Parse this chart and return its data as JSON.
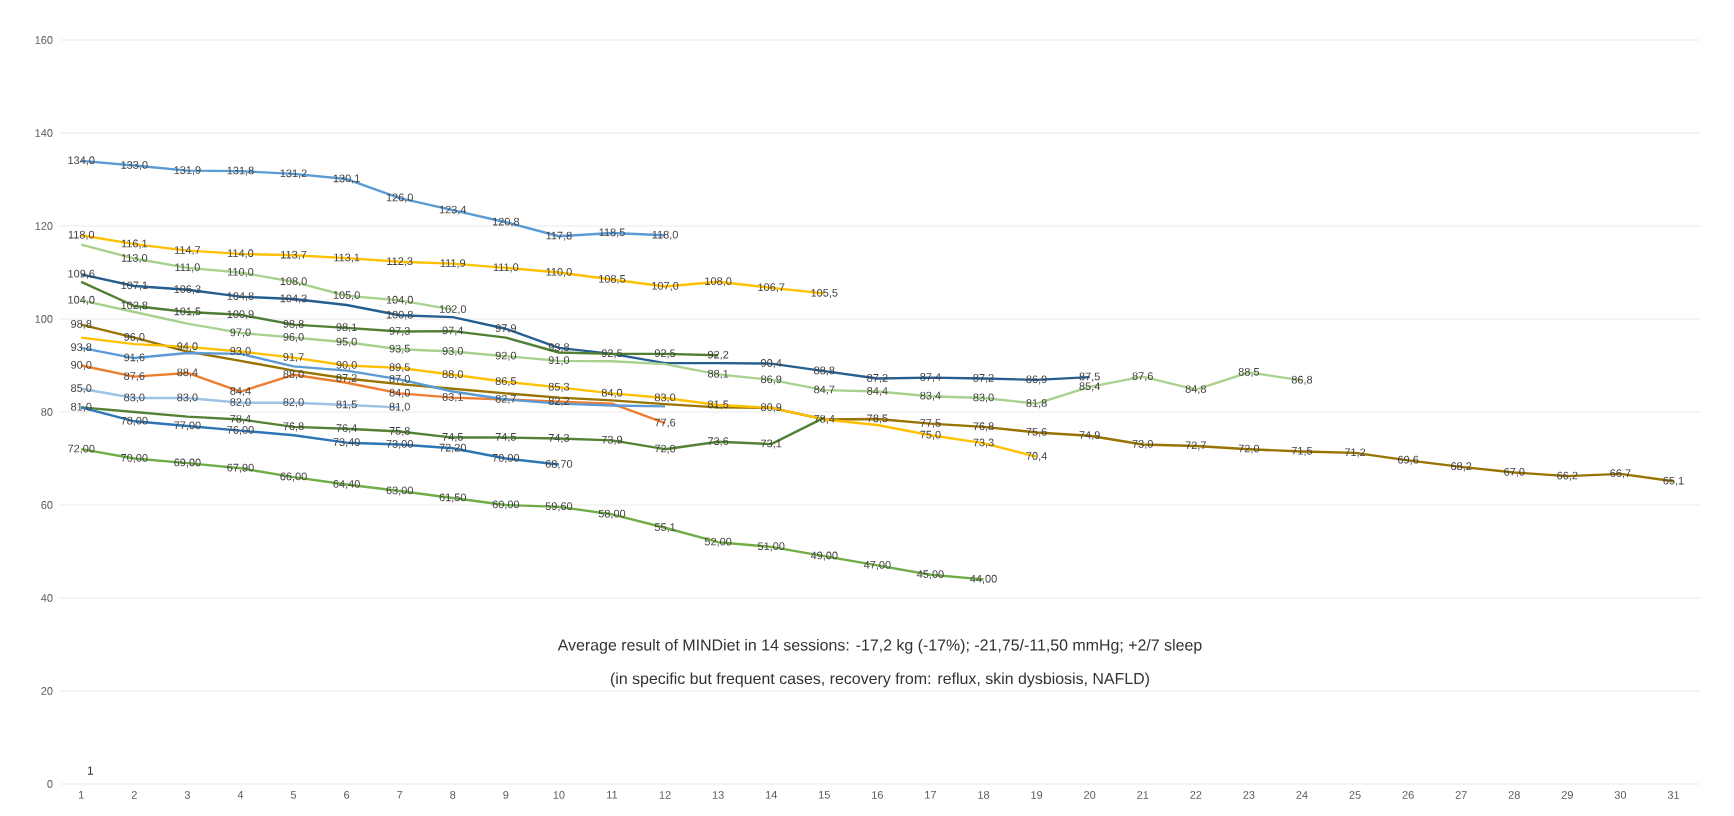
{
  "chart_data": {
    "type": "line",
    "xlim": [
      0.6,
      31.5
    ],
    "ylim": [
      0,
      160
    ],
    "xticks": [
      1,
      2,
      3,
      4,
      5,
      6,
      7,
      8,
      9,
      10,
      11,
      12,
      13,
      14,
      15,
      16,
      17,
      18,
      19,
      20,
      21,
      22,
      23,
      24,
      25,
      26,
      27,
      28,
      29,
      30,
      31
    ],
    "yticks": [
      0,
      20,
      40,
      60,
      80,
      100,
      120,
      140,
      160
    ],
    "grid": "y",
    "marker": "none",
    "line_style": "solid",
    "series": [
      {
        "color": "#5b9bd5",
        "x": [
          1,
          2,
          3,
          4,
          5,
          6,
          7,
          8,
          9,
          10,
          11,
          12
        ],
        "values": [
          134.0,
          133.0,
          131.9,
          131.8,
          131.2,
          130.1,
          126.0,
          123.4,
          120.8,
          117.8,
          118.5,
          118.0
        ],
        "value_labels": [
          "134,0",
          "133,0",
          "131,9",
          "131,8",
          "131,2",
          "130,1",
          "126,0",
          "123,4",
          "120,8",
          "117,8",
          "118,5",
          "118,0"
        ]
      },
      {
        "color": "#ffc000",
        "x": [
          1,
          2,
          3,
          4,
          5,
          6,
          7,
          8,
          9,
          10,
          11,
          12,
          13,
          14,
          15
        ],
        "values": [
          118.0,
          116.1,
          114.7,
          114.0,
          113.7,
          113.1,
          112.3,
          111.9,
          111.0,
          110.0,
          108.5,
          107.0,
          108.0,
          106.7,
          105.5
        ],
        "value_labels": [
          "118,0",
          "116,1",
          "114,7",
          "114,0",
          "113,7",
          "113,1",
          "112,3",
          "111,9",
          "111,0",
          "110,0",
          "108,5",
          "107,0",
          "108,0",
          "106,7",
          "105,5"
        ]
      },
      {
        "color": "#a9d18e",
        "x": [
          1,
          2,
          3,
          4,
          5,
          6,
          7,
          8
        ],
        "values": [
          116.0,
          113.0,
          111.0,
          110.0,
          108.0,
          105.0,
          104.0,
          102.0
        ],
        "value_labels": [
          null,
          "113,0",
          "111,0",
          "110,0",
          "108,0",
          "105,0",
          "104,0",
          "102,0"
        ]
      },
      {
        "color": "#255e91",
        "x": [
          1,
          2,
          3,
          4,
          5,
          6,
          7,
          8,
          9,
          10,
          11,
          12,
          13,
          14,
          15,
          16,
          17,
          18,
          19,
          20
        ],
        "values": [
          109.6,
          107.1,
          106.3,
          104.8,
          104.3,
          103.0,
          100.8,
          100.4,
          97.9,
          93.8,
          92.5,
          90.5,
          90.5,
          90.4,
          88.8,
          87.2,
          87.4,
          87.2,
          86.9,
          87.5
        ],
        "value_labels": [
          "109,6",
          "107,1",
          "106,3",
          "104,8",
          "104,3",
          null,
          "100,8",
          null,
          "97,9",
          "93,8",
          null,
          null,
          null,
          "90,4",
          "88,8",
          "87,2",
          "87,4",
          "87,2",
          "86,9",
          "87,5"
        ]
      },
      {
        "color": "#507e32",
        "x": [
          1,
          2,
          3,
          4,
          5,
          6,
          7,
          8,
          9,
          10,
          11,
          12,
          13
        ],
        "values": [
          108.0,
          102.8,
          101.5,
          100.9,
          98.8,
          98.1,
          97.3,
          97.4,
          96.0,
          92.8,
          92.5,
          92.5,
          92.2
        ],
        "value_labels": [
          null,
          "102,8",
          "101,5",
          "100,9",
          "98,8",
          "98,1",
          "97,3",
          "97,4",
          null,
          null,
          "92,5",
          "92,5",
          "92,2"
        ]
      },
      {
        "color": "#a9d18e",
        "x": [
          1,
          2,
          3,
          4,
          5,
          6,
          7,
          8,
          9,
          10,
          11,
          12,
          13,
          14,
          15,
          16,
          17,
          18,
          19,
          20,
          21,
          22,
          23,
          24
        ],
        "values": [
          104.0,
          101.5,
          99.0,
          97.0,
          96.0,
          95.0,
          93.5,
          93.0,
          92.0,
          91.0,
          90.9,
          90.3,
          88.1,
          86.9,
          84.7,
          84.4,
          83.4,
          83.0,
          81.8,
          85.4,
          87.6,
          84.8,
          88.5,
          86.8
        ],
        "value_labels": [
          "104,0",
          null,
          null,
          "97,0",
          "96,0",
          "95,0",
          "93,5",
          "93,0",
          "92,0",
          "91,0",
          null,
          null,
          "88,1",
          "86,9",
          "84,7",
          "84,4",
          "83,4",
          "83,0",
          "81,8",
          "85,4",
          "87,6",
          "84,8",
          "88,5",
          "86,8"
        ]
      },
      {
        "color": "#997300",
        "x": [
          1,
          2,
          3,
          4,
          5,
          6,
          7,
          8,
          9,
          10,
          11,
          12,
          13,
          14,
          15,
          16,
          17,
          18,
          19,
          20,
          21,
          22,
          23,
          24,
          25,
          26,
          27,
          28,
          29,
          30,
          31
        ],
        "values": [
          98.8,
          96.0,
          93.0,
          91.0,
          88.9,
          87.2,
          86.0,
          85.0,
          84.0,
          83.1,
          82.5,
          81.7,
          81.0,
          80.9,
          78.4,
          78.5,
          77.5,
          76.8,
          75.6,
          74.9,
          73.0,
          72.7,
          72.0,
          71.5,
          71.2,
          69.6,
          68.2,
          67.0,
          66.2,
          66.7,
          65.1
        ],
        "value_labels": [
          "98,8",
          "96,0",
          null,
          null,
          null,
          "87,2",
          null,
          null,
          null,
          null,
          null,
          null,
          null,
          null,
          null,
          "78,5",
          "77,5",
          "76,8",
          "75,6",
          "74,9",
          "73,0",
          "72,7",
          "72,0",
          "71,5",
          "71,2",
          "69,6",
          "68,2",
          "67,0",
          "66,2",
          "66,7",
          "65,1"
        ]
      },
      {
        "color": "#ffc000",
        "x": [
          1,
          2,
          3,
          4,
          5,
          6,
          7,
          8,
          9,
          10,
          11,
          12,
          13,
          14,
          15,
          16,
          17,
          18,
          19
        ],
        "values": [
          96.0,
          94.6,
          94.0,
          93.0,
          91.7,
          90.0,
          89.5,
          88.0,
          86.5,
          85.3,
          84.0,
          83.0,
          81.5,
          80.9,
          78.4,
          77.2,
          75.0,
          73.3,
          70.4
        ],
        "value_labels": [
          null,
          null,
          "94,0",
          "93,0",
          "91,7",
          "90,0",
          "89,5",
          "88,0",
          "86,5",
          "85,3",
          "84,0",
          "83,0",
          "81,5",
          "80,9",
          "78,4",
          null,
          "75,0",
          "73,3",
          "70,4"
        ]
      },
      {
        "color": "#ed7d31",
        "x": [
          1,
          2,
          3,
          4,
          5,
          6,
          7,
          8,
          9,
          10,
          11,
          12
        ],
        "values": [
          90.0,
          87.6,
          88.4,
          84.4,
          88.0,
          86.3,
          84.0,
          83.1,
          82.7,
          82.2,
          81.8,
          77.6
        ],
        "value_labels": [
          "90,0",
          "87,6",
          "88,4",
          "84,4",
          "88,0",
          null,
          "84,0",
          "83,1",
          "82,7",
          "82,2",
          null,
          "77,6"
        ]
      },
      {
        "color": "#548235",
        "x": [
          1,
          2,
          3,
          4,
          5,
          6,
          7,
          8,
          9,
          10,
          11,
          12,
          13,
          14,
          15
        ],
        "values": [
          81.0,
          80.0,
          79.0,
          78.4,
          76.8,
          76.4,
          75.8,
          74.5,
          74.5,
          74.3,
          73.9,
          72.0,
          73.6,
          73.1,
          78.8
        ],
        "value_labels": [
          "81,0",
          null,
          null,
          "78,4",
          "76,8",
          "76,4",
          "75,8",
          "74,5",
          "74,5",
          "74,3",
          "73,9",
          "72,0",
          "73,6",
          "73,1",
          null
        ]
      },
      {
        "color": "#2e75b6",
        "x": [
          1,
          2,
          3,
          4,
          5,
          6,
          7,
          8,
          9,
          10
        ],
        "values": [
          81.0,
          78.0,
          77.0,
          76.0,
          75.0,
          73.4,
          73.0,
          72.2,
          70.0,
          68.7
        ],
        "value_labels": [
          null,
          "78,00",
          "77,00",
          "76,00",
          null,
          "73,40",
          "73,00",
          "72,20",
          "70,00",
          "68,70"
        ]
      },
      {
        "color": "#70ad47",
        "x": [
          1,
          2,
          3,
          4,
          5,
          6,
          7,
          8,
          9,
          10,
          11,
          12,
          13,
          14,
          15,
          16,
          17,
          18
        ],
        "values": [
          72.0,
          70.0,
          69.0,
          67.9,
          66.0,
          64.4,
          63.0,
          61.5,
          60.0,
          59.6,
          58.0,
          55.1,
          52.0,
          51.0,
          49.0,
          47.0,
          45.0,
          44.0
        ],
        "value_labels": [
          "72,00",
          "70,00",
          "69,00",
          "67,90",
          "66,00",
          "64,40",
          "63,00",
          "61,50",
          "60,00",
          "59,60",
          "58,00",
          "55,1",
          "52,00",
          "51,00",
          "49,00",
          "47,00",
          "45,00",
          "44,00"
        ]
      },
      {
        "color": "#9dc3e6",
        "x": [
          1,
          2,
          3,
          4,
          5,
          6,
          7
        ],
        "values": [
          85.0,
          83.0,
          83.0,
          82.0,
          82.0,
          81.5,
          81.0
        ],
        "value_labels": [
          "85,0",
          "83,0",
          "83,0",
          "82,0",
          "82,0",
          "81,5",
          "81,0"
        ]
      },
      {
        "color": "#5b9bd5",
        "x": [
          1,
          2,
          3,
          4,
          5,
          6,
          7,
          8,
          9,
          10,
          11,
          12
        ],
        "values": [
          93.8,
          91.6,
          92.7,
          92.5,
          89.8,
          88.9,
          87.0,
          84.4,
          82.7,
          81.8,
          81.4,
          81.2
        ],
        "value_labels": [
          "93,8",
          "91,6",
          null,
          null,
          null,
          null,
          "87,0",
          null,
          null,
          null,
          null,
          null
        ]
      }
    ],
    "annotations": [
      "Average result of MINDiet in 14 sessions: -17,2 kg (-17%); -21,75/-11,50 mmHg; +2/7 sleep",
      "(in specific but frequent cases, recovery from: reflux, skin dysbiosis, NAFLD)",
      "1"
    ]
  }
}
